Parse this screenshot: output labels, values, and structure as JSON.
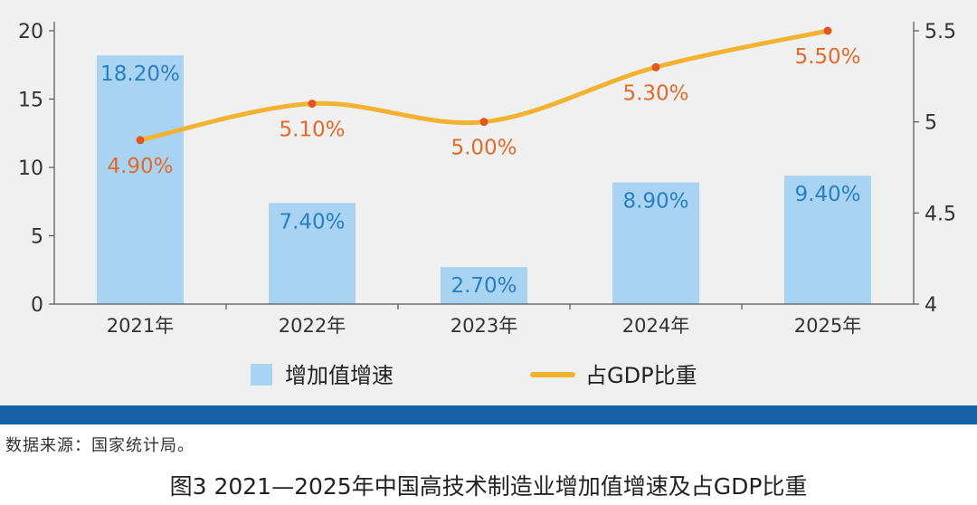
{
  "chart_data": {
    "type": "bar+line",
    "categories": [
      "2021年",
      "2022年",
      "2023年",
      "2024年",
      "2025年"
    ],
    "series": [
      {
        "name": "增加值增速",
        "kind": "bar",
        "axis": "left",
        "values": [
          18.2,
          7.4,
          2.7,
          8.9,
          9.4
        ],
        "labels": [
          "18.20%",
          "7.40%",
          "2.70%",
          "8.90%",
          "9.40%"
        ],
        "color": "#a9d3f2"
      },
      {
        "name": "占GDP比重",
        "kind": "line",
        "axis": "right",
        "values": [
          4.9,
          5.1,
          5.0,
          5.3,
          5.5
        ],
        "labels": [
          "4.90%",
          "5.10%",
          "5.00%",
          "5.30%",
          "5.50%"
        ],
        "color": "#f4b233",
        "marker_color": "#e0561f",
        "label_color": "#e06b2a"
      }
    ],
    "y_left": {
      "ylim": [
        0,
        20
      ],
      "ticks": [
        "0",
        "5",
        "10",
        "15",
        "20"
      ]
    },
    "y_right": {
      "ylim": [
        4,
        5.5
      ],
      "ticks": [
        "4",
        "4.5",
        "5",
        "5.5"
      ]
    },
    "legend_position": "bottom",
    "grid": false
  },
  "source_note": "数据来源：国家统计局。",
  "caption": "图3   2021—2025年中国高技术制造业增加值增速及占GDP比重",
  "colors": {
    "band": "#1561a6",
    "panel": "#f0f0f0"
  }
}
